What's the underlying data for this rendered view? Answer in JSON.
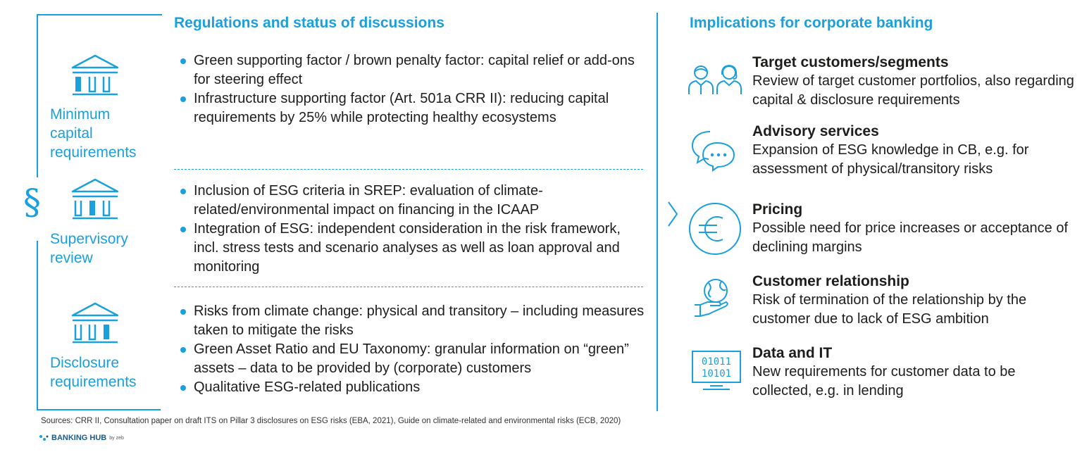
{
  "left_heading": "Regulations and status of discussions",
  "right_heading": "Implications for corporate banking",
  "section_symbol": "§",
  "pillars": [
    {
      "label": "Minimum capital requirements",
      "bullets": [
        "Green supporting factor / brown penalty factor: capital relief or add-ons for steering effect",
        "Infrastructure supporting factor (Art. 501a CRR II): reducing capital requirements by 25% while protecting healthy ecosystems"
      ]
    },
    {
      "label": "Supervisory review",
      "bullets": [
        "Inclusion of ESG criteria in SREP: evaluation of climate-related/environmental impact on financing in the ICAAP",
        "Integration of ESG: independent consideration in the risk framework, incl. stress tests and scenario analyses as well as loan approval and monitoring"
      ]
    },
    {
      "label": "Disclosure requirements",
      "bullets": [
        "Risks from climate change: physical and transitory – including measures taken to mitigate the risks",
        "Green Asset Ratio and EU Taxonomy: granular information on “green” assets – data to be provided by (corporate) customers",
        "Qualitative ESG-related publications"
      ]
    }
  ],
  "implications": [
    {
      "icon": "people-icon",
      "title": "Target customers/segments",
      "text": "Review of target customer portfolios, also regarding capital & disclosure requirements"
    },
    {
      "icon": "speech-bubble-icon",
      "title": "Advisory services",
      "text": "Expansion of ESG knowledge in CB, e.g. for assessment of physical/transitory risks"
    },
    {
      "icon": "euro-icon",
      "title": "Pricing",
      "text": "Possible need for price increases or acceptance of declining margins"
    },
    {
      "icon": "hand-globe-icon",
      "title": "Customer relationship",
      "text": "Risk of termination of the relationship by the customer due to lack of ESG ambition"
    },
    {
      "icon": "binary-monitor-icon",
      "title": "Data and IT",
      "text": "New requirements for customer data to be collected, e.g. in lending"
    }
  ],
  "binary_lines": [
    "01011",
    "10101"
  ],
  "sources": "Sources: CRR II, Consultation paper on draft ITS on Pillar 3 disclosures on ESG risks (EBA, 2021), Guide on climate-related and environmental risks (ECB, 2020)",
  "brand": {
    "name": "BANKING HUB",
    "suffix": "by zeb"
  },
  "colors": {
    "accent": "#1aa0de",
    "text": "#1d1d1b"
  }
}
